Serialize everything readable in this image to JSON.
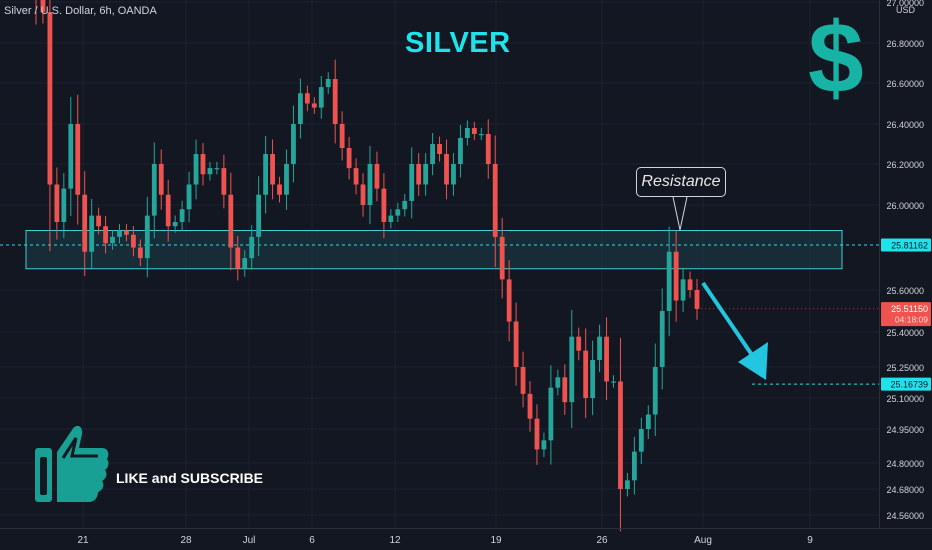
{
  "header": {
    "symbol": "Silver / U.S. Dollar, 6h, OANDA",
    "currency": "USD"
  },
  "annotations": {
    "title": "SILVER",
    "dollar_sign": "$",
    "resistance_label": "Resistance",
    "cta": "LIKE and SUBSCRIBE",
    "thumb_icon": "thumbs-up-icon"
  },
  "colors": {
    "bull": "#26a69a",
    "bear": "#ef5350",
    "accent": "#1fe3ec",
    "zone_border": "#3fd0d6",
    "zone_fill": "#1b3a44",
    "arrow": "#22c6e0",
    "background": "#131722",
    "text": "#d1d4dc"
  },
  "chart_data": {
    "type": "candlestick",
    "y_axis_ticks": [
      "27.00000",
      "26.80000",
      "26.60000",
      "26.40000",
      "26.20000",
      "26.00000",
      "25.60000",
      "25.40000",
      "25.25000",
      "25.10000",
      "24.95000",
      "24.80000",
      "24.68000",
      "24.56000"
    ],
    "x_axis_ticks": [
      "21",
      "28",
      "Jul",
      "6",
      "12",
      "19",
      "26",
      "Aug",
      "9"
    ],
    "price_labels": [
      {
        "label": "resistance",
        "value": "25.81162",
        "color": "#1fe3ec"
      },
      {
        "label": "current",
        "value": "25.51150",
        "sub": "04:18:09",
        "color": "#ef5350"
      },
      {
        "label": "target",
        "value": "25.16739",
        "color": "#1fe3ec"
      }
    ],
    "zones": [
      {
        "name": "resistance zone",
        "top": 25.88,
        "bottom": 25.7
      }
    ],
    "closes": [
      27.05,
      26.95,
      26.1,
      25.92,
      26.08,
      26.4,
      26.05,
      25.78,
      25.95,
      25.9,
      25.82,
      25.85,
      25.88,
      25.86,
      25.8,
      25.75,
      25.95,
      26.2,
      26.05,
      25.9,
      25.92,
      25.98,
      26.1,
      26.25,
      26.15,
      26.18,
      26.18,
      26.05,
      25.8,
      25.7,
      25.75,
      25.85,
      26.05,
      26.25,
      26.1,
      26.05,
      26.2,
      26.4,
      26.55,
      26.5,
      26.48,
      26.58,
      26.62,
      26.4,
      26.28,
      26.18,
      26.1,
      26.0,
      26.2,
      26.08,
      25.92,
      25.95,
      25.98,
      26.02,
      26.2,
      26.1,
      26.2,
      26.3,
      26.25,
      26.1,
      26.2,
      26.33,
      26.38,
      26.35,
      26.35,
      26.2,
      25.85,
      25.65,
      25.45,
      25.25,
      25.12,
      25.0,
      24.86,
      24.9,
      25.15,
      25.2,
      25.08,
      25.38,
      25.32,
      25.1,
      25.28,
      25.38,
      25.18,
      25.18,
      24.68,
      24.72,
      24.85,
      24.95,
      25.02,
      25.25,
      25.5,
      25.78,
      25.55,
      25.65,
      25.6,
      25.51
    ]
  }
}
